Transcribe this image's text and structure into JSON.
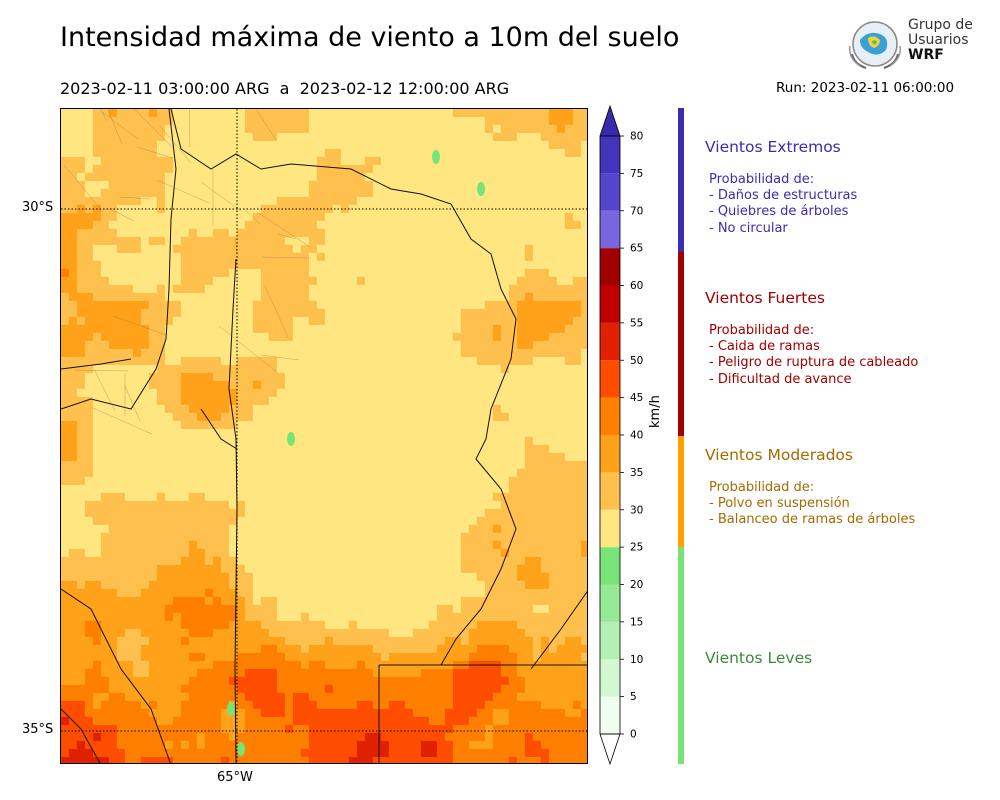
{
  "title": "Intensidad máxima de viento a 10m del suelo",
  "subtitle": "2023-02-11 03:00:00 ARG  a  2023-02-12 12:00:00 ARG",
  "run": "Run: 2023-02-11 06:00:00",
  "logo": {
    "line1": "Grupo de",
    "line2": "Usuarios",
    "line3": "WRF"
  },
  "map": {
    "lat_labels": [
      "30°S",
      "35°S"
    ],
    "lon_labels": [
      "65°W"
    ]
  },
  "colorbar": {
    "unit": "km/h",
    "ticks": [
      "0",
      "5",
      "10",
      "15",
      "20",
      "25",
      "30",
      "35",
      "40",
      "45",
      "50",
      "55",
      "60",
      "65",
      "70",
      "75",
      "80"
    ],
    "colors": [
      "#f0fef0",
      "#d2f8d2",
      "#b4f0b4",
      "#96ea96",
      "#78e478",
      "#ffe680",
      "#ffc04d",
      "#ffa21a",
      "#ff8000",
      "#ff4d00",
      "#e02000",
      "#c00000",
      "#a00000",
      "#7766dd",
      "#5544cc",
      "#4433bb"
    ],
    "extend_low": "#ffffff",
    "extend_high": "#3a2aaa"
  },
  "categories": [
    {
      "title": "Vientos Extremos",
      "color": "#3b2db0",
      "intro": "Probabilidad de:",
      "items": [
        "- Daños de estructuras",
        "- Quiebres de árboles",
        "- No circular"
      ]
    },
    {
      "title": "Vientos Fuertes",
      "color": "#a00000",
      "intro": "Probabilidad de:",
      "items": [
        "- Caida de ramas",
        "- Peligro de ruptura de cableado",
        "- Dificultad de avance"
      ]
    },
    {
      "title": "Vientos Moderados",
      "color": "#a66a00",
      "intro": "Probabilidad de:",
      "items": [
        "- Polvo en suspensión",
        "- Balanceo de ramas de árboles"
      ]
    },
    {
      "title": "Vientos Leves",
      "color": "#3a8a3a",
      "intro": "",
      "items": []
    }
  ],
  "category_bar_colors": [
    "#3b2db0",
    "#a00000",
    "#ffa000",
    "#78e478"
  ]
}
